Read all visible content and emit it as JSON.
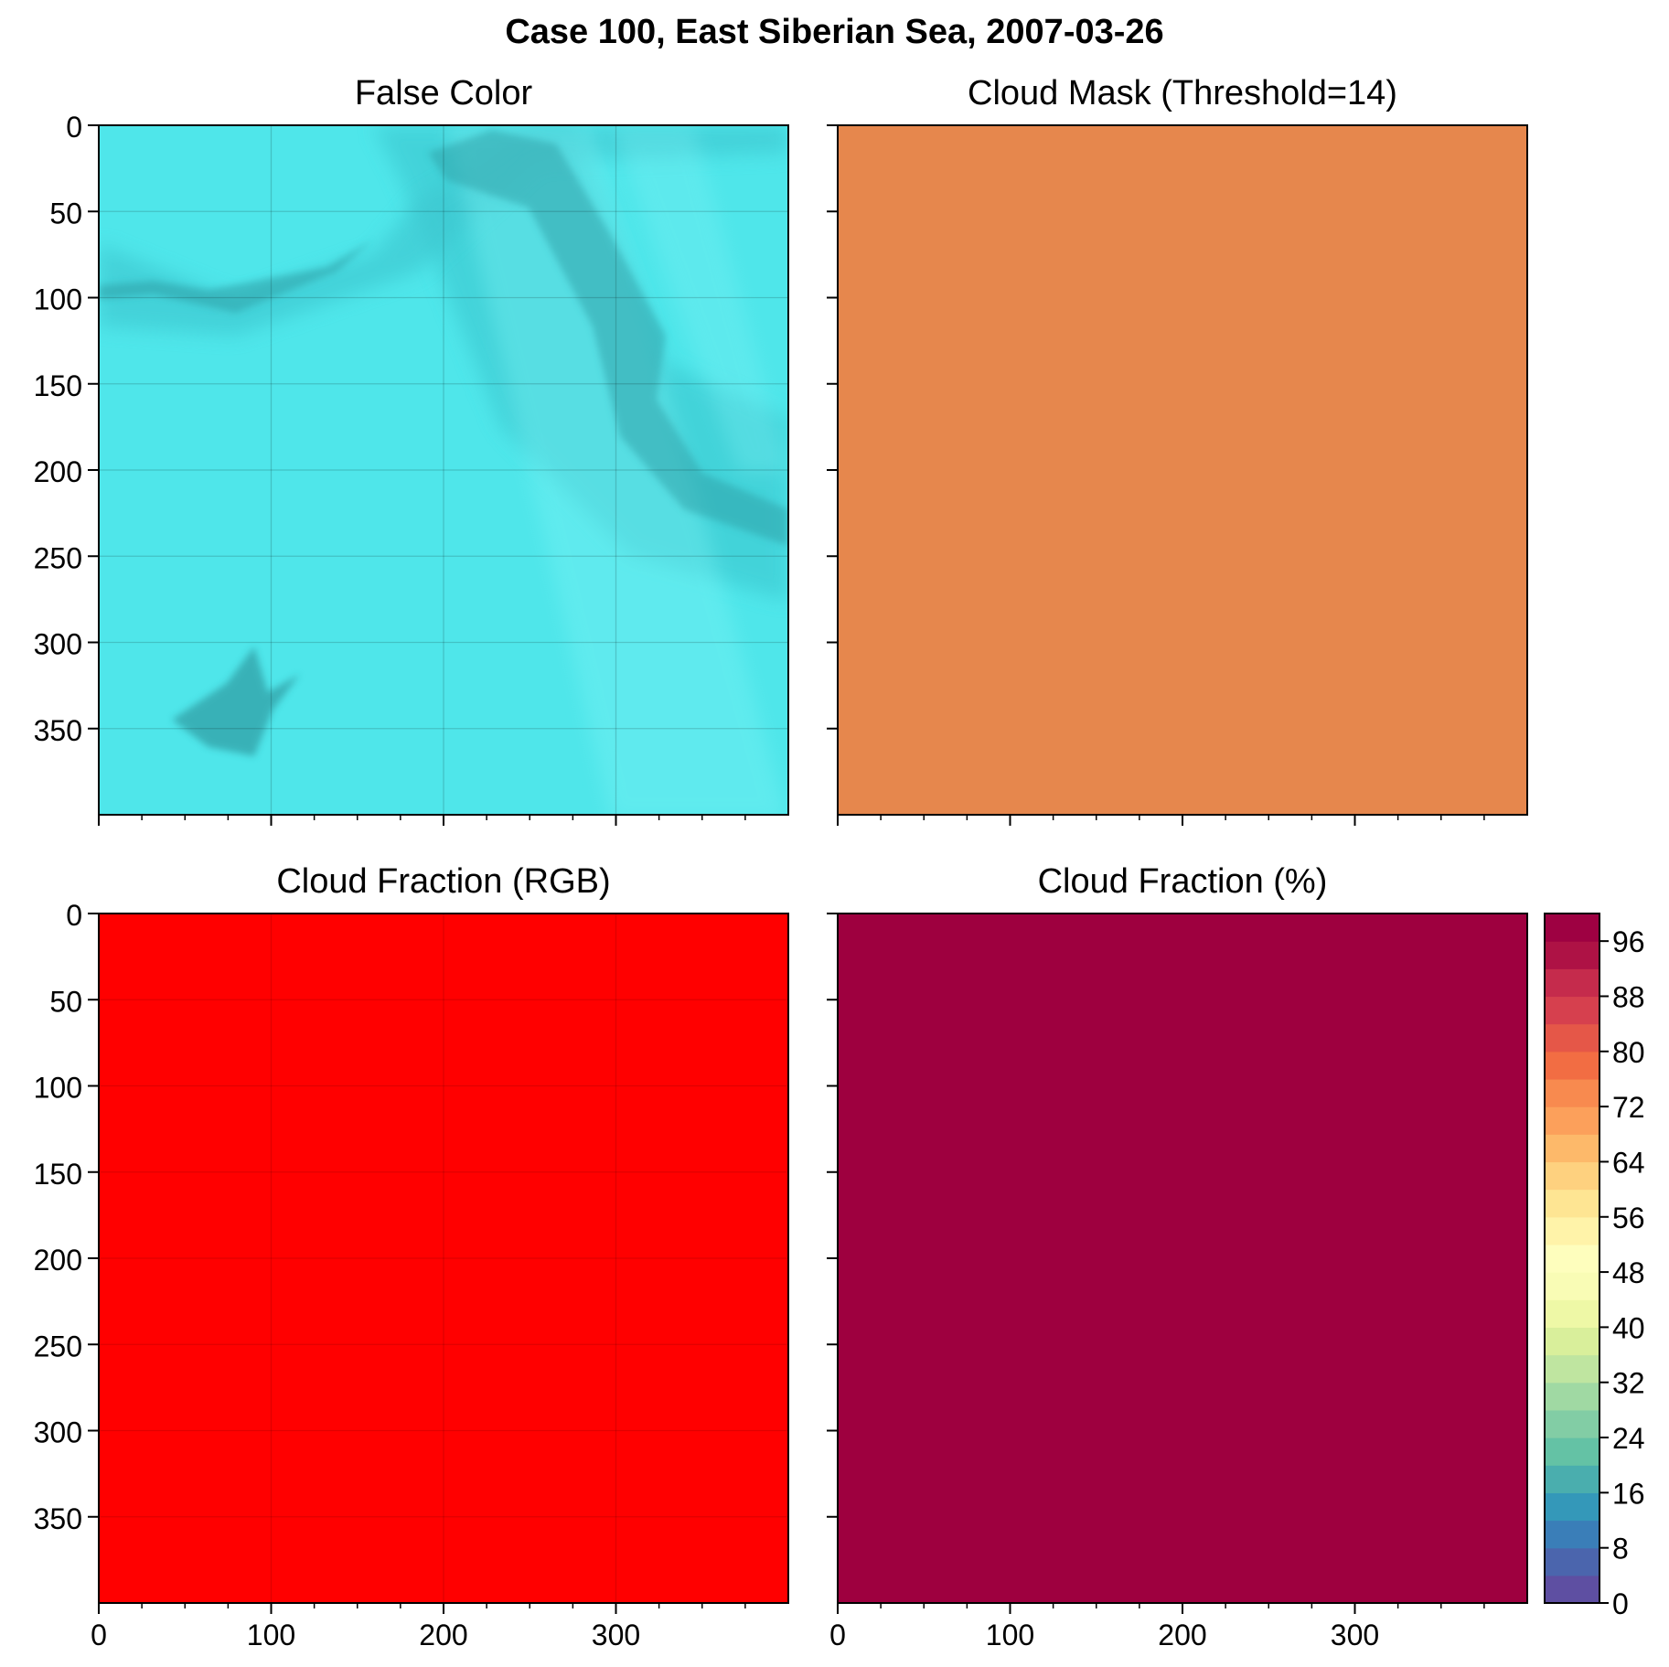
{
  "figure": {
    "title": "Case 100, East Siberian Sea, 2007-03-26"
  },
  "chart_data": [
    {
      "type": "heatmap",
      "title": "False Color",
      "image": "false-color composite, cyan sea ice with darker leads and grid lines",
      "fill_color": "#4fe6ea",
      "xlim": [
        0,
        400
      ],
      "ylim": [
        400,
        0
      ],
      "xticks": [
        0,
        100,
        200,
        300
      ],
      "yticks": [
        0,
        50,
        100,
        150,
        200,
        250,
        300,
        350
      ],
      "x_tick_labels_shown": false,
      "y_tick_labels_shown": true,
      "grid": true
    },
    {
      "type": "heatmap",
      "title": "Cloud Mask (Threshold=14)",
      "image": "uniform cloud mask",
      "fill_color": "#e6874d",
      "xlim": [
        0,
        400
      ],
      "ylim": [
        400,
        0
      ],
      "xticks": [
        0,
        100,
        200,
        300
      ],
      "yticks": [
        0,
        50,
        100,
        150,
        200,
        250,
        300,
        350
      ],
      "x_tick_labels_shown": false,
      "y_tick_labels_shown": false,
      "grid": false
    },
    {
      "type": "heatmap",
      "title": "Cloud Fraction (RGB)",
      "image": "uniform red field",
      "fill_color": "#ff0000",
      "xlim": [
        0,
        400
      ],
      "ylim": [
        400,
        0
      ],
      "xticks": [
        0,
        100,
        200,
        300
      ],
      "yticks": [
        0,
        50,
        100,
        150,
        200,
        250,
        300,
        350
      ],
      "x_tick_labels_shown": true,
      "y_tick_labels_shown": true,
      "grid": true
    },
    {
      "type": "heatmap",
      "title": "Cloud Fraction (%)",
      "image": "uniform field at maximum cloud fraction",
      "value": 100,
      "fill_color": "#9e003f",
      "xlim": [
        0,
        400
      ],
      "ylim": [
        400,
        0
      ],
      "xticks": [
        0,
        100,
        200,
        300
      ],
      "yticks": [
        0,
        50,
        100,
        150,
        200,
        250,
        300,
        350
      ],
      "x_tick_labels_shown": true,
      "y_tick_labels_shown": false,
      "grid": false,
      "colorbar": {
        "range": [
          0,
          100
        ],
        "levels": 25,
        "ticks": [
          0,
          8,
          16,
          24,
          32,
          40,
          48,
          56,
          64,
          72,
          80,
          88,
          96
        ],
        "colors": [
          "#5e4fa2",
          "#4b65ad",
          "#3a7eb8",
          "#3498b9",
          "#4aaeae",
          "#64c2a5",
          "#82cda5",
          "#a0d9a3",
          "#bfe5a0",
          "#d9ef9b",
          "#eef8a6",
          "#f9fcb5",
          "#fefebd",
          "#fff3a9",
          "#fee593",
          "#fed17f",
          "#fdb96a",
          "#fca05b",
          "#f88a4f",
          "#f26d43",
          "#e55748",
          "#d6404e",
          "#c52b4c",
          "#ae1245",
          "#9e0142"
        ]
      }
    }
  ]
}
